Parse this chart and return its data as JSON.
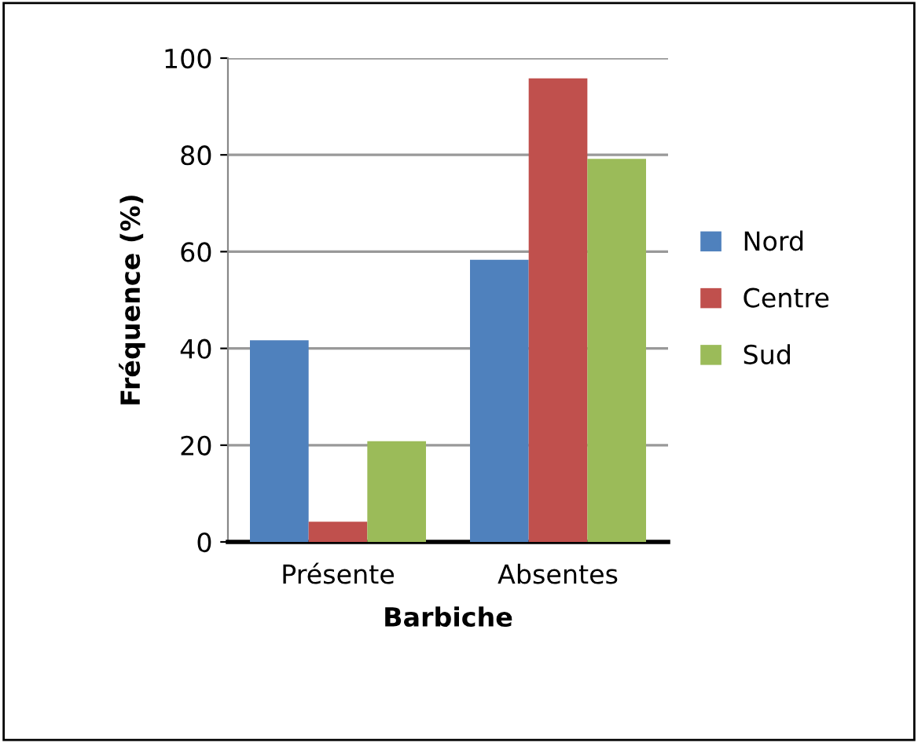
{
  "chart_data": {
    "type": "bar",
    "xlabel": "Barbiche",
    "ylabel": "Fréquence (%)",
    "categories": [
      "Présente",
      "Absentes"
    ],
    "series": [
      {
        "name": "Nord",
        "color": "#4f81bd",
        "values": [
          41.7,
          58.3
        ]
      },
      {
        "name": "Centre",
        "color": "#c0504d",
        "values": [
          4.2,
          95.8
        ]
      },
      {
        "name": "Sud",
        "color": "#9bbb59",
        "values": [
          20.8,
          79.2
        ]
      }
    ],
    "ylim": [
      0,
      100
    ],
    "yticks": [
      0,
      20,
      40,
      60,
      80,
      100
    ],
    "grid": "y",
    "legend": "right"
  }
}
